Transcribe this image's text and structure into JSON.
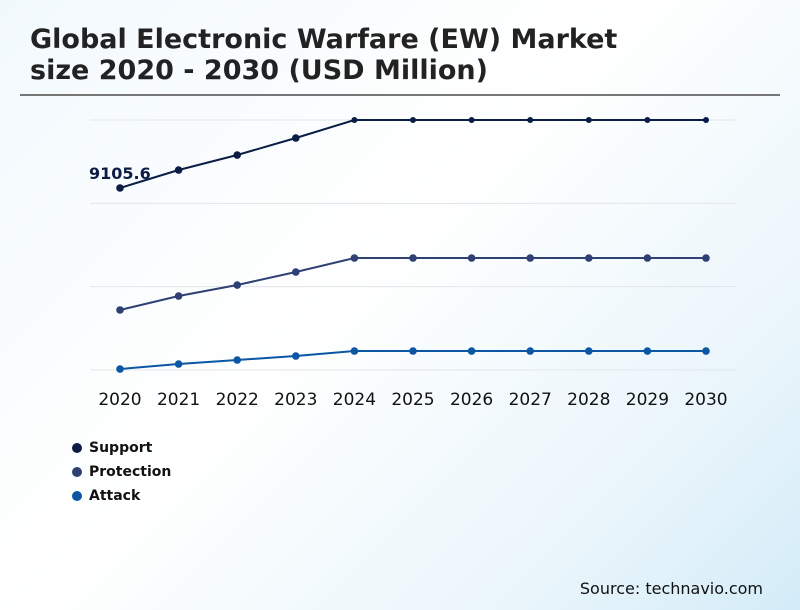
{
  "title_line1": "Global Electronic Warfare (EW) Market",
  "title_line2": "size 2020 - 2030 (USD Million)",
  "source": "Source: technavio.com",
  "chart_data": {
    "type": "line",
    "categories": [
      "2020",
      "2021",
      "2022",
      "2023",
      "2024",
      "2025",
      "2026",
      "2027",
      "2028",
      "2029",
      "2030"
    ],
    "ylim": [
      0,
      12508
    ],
    "grid": true,
    "legend_placement": "bottom-left",
    "annotations": [
      {
        "series": "Support",
        "category": "2020",
        "text": "9105.6"
      }
    ],
    "series": [
      {
        "name": "Support",
        "color": "#0b1d45",
        "values": [
          9106,
          10006,
          10756,
          11607,
          12508,
          12508,
          12508,
          12508,
          12508,
          12508,
          12508
        ]
      },
      {
        "name": "Protection",
        "color": "#2f4074",
        "values": [
          3002,
          3702,
          4252,
          4903,
          5603,
          5603,
          5603,
          5603,
          5603,
          5603,
          5603
        ]
      },
      {
        "name": "Attack",
        "color": "#0b57a4",
        "values": [
          50,
          300,
          500,
          700,
          950,
          950,
          950,
          950,
          950,
          950,
          950
        ]
      }
    ]
  }
}
